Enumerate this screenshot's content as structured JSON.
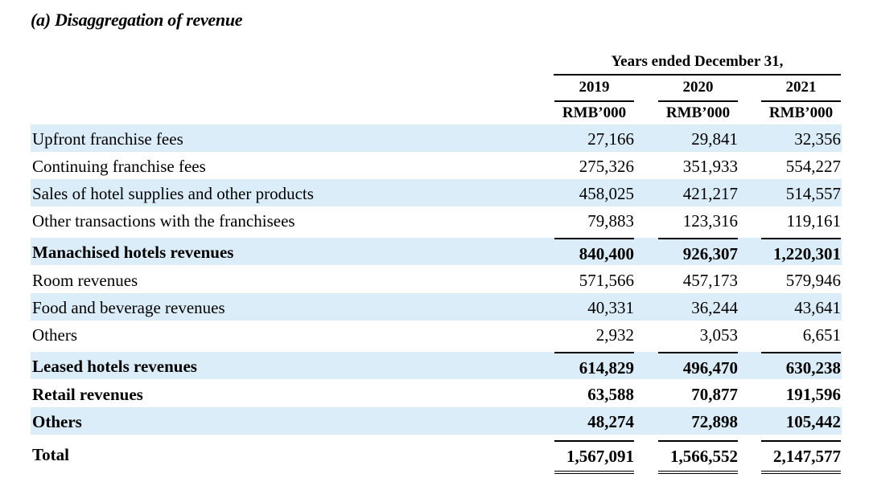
{
  "title": "(a) Disaggregation of revenue",
  "header": {
    "period": "Years ended December 31,",
    "years": [
      "2019",
      "2020",
      "2021"
    ],
    "units": [
      "RMB’000",
      "RMB’000",
      "RMB’000"
    ]
  },
  "rows": [
    {
      "label": "Upfront franchise fees",
      "values": [
        "27,166",
        "29,841",
        "32,356"
      ]
    },
    {
      "label": "Continuing franchise fees",
      "values": [
        "275,326",
        "351,933",
        "554,227"
      ]
    },
    {
      "label": "Sales of hotel supplies and other products",
      "values": [
        "458,025",
        "421,217",
        "514,557"
      ]
    },
    {
      "label": "Other transactions with the franchisees",
      "values": [
        "79,883",
        "123,316",
        "119,161"
      ]
    },
    {
      "label": "Manachised hotels revenues",
      "values": [
        "840,400",
        "926,307",
        "1,220,301"
      ]
    },
    {
      "label": "Room revenues",
      "values": [
        "571,566",
        "457,173",
        "579,946"
      ]
    },
    {
      "label": "Food and beverage revenues",
      "values": [
        "40,331",
        "36,244",
        "43,641"
      ]
    },
    {
      "label": "Others",
      "values": [
        "2,932",
        "3,053",
        "6,651"
      ]
    },
    {
      "label": "Leased hotels revenues",
      "values": [
        "614,829",
        "496,470",
        "630,238"
      ]
    },
    {
      "label": "Retail revenues",
      "values": [
        "63,588",
        "70,877",
        "191,596"
      ]
    },
    {
      "label": "Others",
      "values": [
        "48,274",
        "72,898",
        "105,442"
      ]
    },
    {
      "label": "Total",
      "values": [
        "1,567,091",
        "1,566,552",
        "2,147,577"
      ]
    }
  ]
}
